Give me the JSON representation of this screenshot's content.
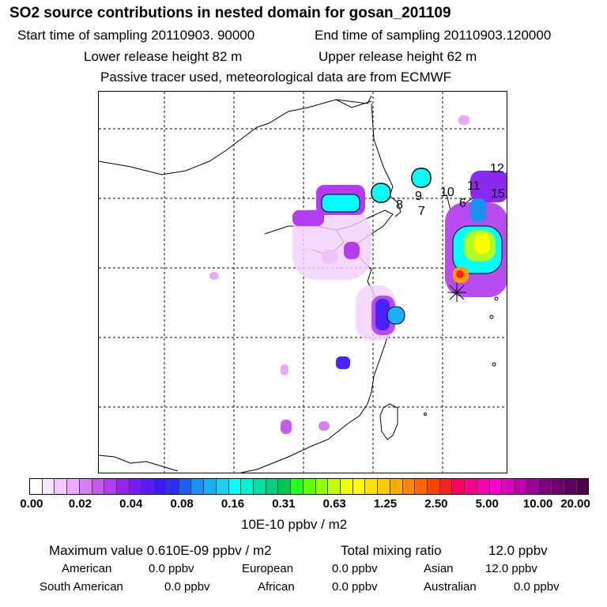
{
  "title": "SO2 source contributions in nested domain for gosan_201109",
  "header": {
    "start_time": "Start time of sampling 20110903. 90000",
    "end_time": "End time of sampling 20110903.120000",
    "lower_release": "Lower release height   82 m",
    "upper_release": "Upper release height   62 m",
    "tracer_note": "Passive tracer used, meteorological data are from ECMWF"
  },
  "map": {
    "region_labels": [
      "12",
      "11",
      "15",
      "10",
      "9",
      "6",
      "8",
      "7"
    ],
    "receptor_symbol": "asterisk-icon"
  },
  "colorbar": {
    "ticks": [
      "0.00",
      "0.02",
      "0.04",
      "0.08",
      "0.16",
      "0.31",
      "0.63",
      "1.25",
      "2.50",
      "5.00",
      "10.00",
      "20.00"
    ],
    "units": "10E-10 ppbv / m2",
    "colors": [
      "#ffffff",
      "#fce6ff",
      "#f5c8ff",
      "#eeaaff",
      "#d87ff5",
      "#c85af0",
      "#b43cf0",
      "#9a22f0",
      "#7a1aff",
      "#5a1aff",
      "#3a1aff",
      "#2a30f5",
      "#1a60f5",
      "#1a90f5",
      "#1ab0f5",
      "#1ad0f5",
      "#00ffff",
      "#00f0d0",
      "#00e0a0",
      "#00d080",
      "#00c850",
      "#20ff20",
      "#60ff00",
      "#90ff00",
      "#c8ff00",
      "#eeff00",
      "#ffff00",
      "#ffe000",
      "#ffc800",
      "#ffaa00",
      "#ff8800",
      "#ff6600",
      "#ff4400",
      "#ff2020",
      "#ff0060",
      "#ff0090",
      "#ff00b0",
      "#ff00d0",
      "#e000c0",
      "#c000b0",
      "#a000a0",
      "#800080",
      "#700070",
      "#600060",
      "#500050"
    ]
  },
  "stats": {
    "max_value": "Maximum value  0.610E-09 ppbv / m2",
    "total_mixing": "Total mixing ratio",
    "total_mixing_value": "12.0 ppbv",
    "sources": [
      {
        "name": "American",
        "value": "0.0 ppbv"
      },
      {
        "name": "European",
        "value": "0.0 ppbv"
      },
      {
        "name": "Asian",
        "value": "12.0 ppbv"
      },
      {
        "name": "South American",
        "value": "0.0 ppbv"
      },
      {
        "name": "African",
        "value": "0.0 ppbv"
      },
      {
        "name": "Australian",
        "value": "0.0 ppbv"
      }
    ]
  }
}
